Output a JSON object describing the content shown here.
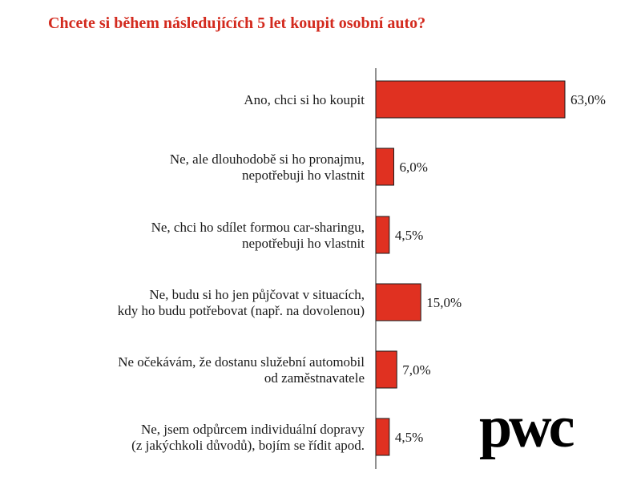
{
  "chart_data": {
    "type": "bar",
    "orientation": "horizontal",
    "title": "Chcete si během následujících 5 let koupit osobní auto?",
    "categories": [
      [
        "Ano, chci si ho koupit"
      ],
      [
        "Ne, ale dlouhodobě si ho pronajmu,",
        "nepotřebuji ho vlastnit"
      ],
      [
        "Ne, chci ho sdílet formou car-sharingu,",
        "nepotřebuji ho vlastnit"
      ],
      [
        "Ne, budu si ho jen půjčovat v situacích,",
        "kdy ho budu potřebovat (např. na dovolenou)"
      ],
      [
        "Ne očekávám, že dostanu služební automobil",
        "od zaměstnavatele"
      ],
      [
        "Ne, jsem odpůrcem individuální dopravy",
        "(z jakýchkoli důvodů), bojím se řídit apod."
      ]
    ],
    "values": [
      63.0,
      6.0,
      4.5,
      15.0,
      7.0,
      4.5
    ],
    "value_labels": [
      "63,0%",
      "6,0%",
      "4,5%",
      "15,0%",
      "7,0%",
      "4,5%"
    ],
    "xlim": [
      0,
      63.0
    ],
    "grid": false,
    "bar_color": "#e03121"
  },
  "logo": {
    "text": "pwc"
  }
}
